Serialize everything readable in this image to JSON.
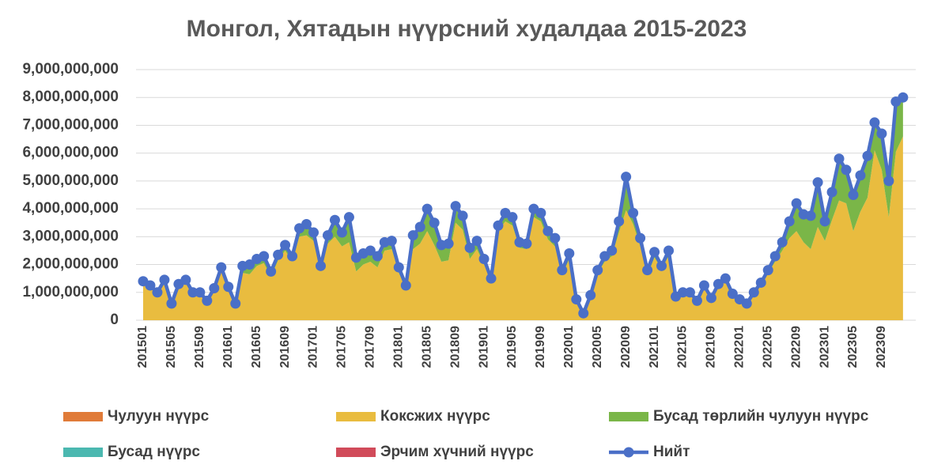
{
  "chart_data": {
    "type": "stacked-area-line",
    "title": "Монгол, Хятадын нүүрсний худалдаа 2015-2023",
    "categories": [
      "201501",
      null,
      null,
      null,
      "201505",
      null,
      null,
      null,
      "201509",
      null,
      null,
      null,
      "201601",
      null,
      null,
      null,
      "201605",
      null,
      null,
      null,
      "201609",
      null,
      null,
      null,
      "201701",
      null,
      null,
      null,
      "201705",
      null,
      null,
      null,
      "201709",
      null,
      null,
      null,
      "201801",
      null,
      null,
      null,
      "201805",
      null,
      null,
      null,
      "201809",
      null,
      null,
      null,
      "201901",
      null,
      null,
      null,
      "201905",
      null,
      null,
      null,
      "201909",
      null,
      null,
      null,
      "202001",
      null,
      null,
      null,
      "202005",
      null,
      null,
      null,
      "202009",
      null,
      null,
      null,
      "202101",
      null,
      null,
      null,
      "202105",
      null,
      null,
      null,
      "202109",
      null,
      null,
      null,
      "202201",
      null,
      null,
      null,
      "202205",
      null,
      null,
      null,
      "202209",
      null,
      null,
      null,
      "202301",
      null,
      null,
      null,
      "202305",
      null,
      null,
      null,
      "202309",
      null,
      null,
      null
    ],
    "ylim": [
      0,
      9000000000.0
    ],
    "yticks": [
      0,
      {
        "value": 1000000000.0,
        "label": "1,000,000,000"
      },
      {
        "value": 2000000000.0,
        "label": "2,000,000,000"
      },
      {
        "value": 3000000000.0,
        "label": "3,000,000,000"
      },
      {
        "value": 4000000000.0,
        "label": "4,000,000,000"
      },
      {
        "value": 5000000000.0,
        "label": "5,000,000,000"
      },
      {
        "value": 6000000000.0,
        "label": "6,000,000,000"
      },
      {
        "value": 7000000000.0,
        "label": "7,000,000,000"
      },
      {
        "value": 8000000000.0,
        "label": "8,000,000,000"
      },
      {
        "value": 9000000000.0,
        "label": "9,000,000,000"
      }
    ],
    "grid": true,
    "legend": "bottom",
    "series": [
      {
        "name": "Чулуун нүүрс",
        "color": "#E07B39",
        "kind": "area",
        "values": [
          0,
          0,
          0,
          0,
          0,
          0,
          0,
          0,
          0,
          0,
          0,
          0,
          0,
          0,
          0,
          0,
          0,
          0,
          0,
          0,
          0,
          0,
          0,
          0,
          0,
          0,
          0,
          0,
          0,
          0,
          0,
          0,
          0,
          0,
          0,
          0,
          0,
          0,
          0,
          0,
          0,
          0,
          0,
          0,
          0,
          0,
          0,
          0,
          0,
          0,
          0,
          0,
          0,
          0,
          0,
          0,
          0,
          0,
          0,
          0,
          0,
          0,
          0,
          0,
          0,
          0,
          0,
          0,
          0,
          0,
          0,
          0,
          0,
          0,
          0,
          0,
          0,
          0,
          0,
          0,
          0,
          0,
          0,
          0,
          0,
          0,
          0,
          0,
          0,
          0,
          0,
          0,
          0,
          0,
          0,
          0,
          0,
          0,
          0,
          0,
          0,
          0,
          0,
          0,
          0,
          0,
          0,
          0
        ]
      },
      {
        "name": "Коксжих нүүрс",
        "color": "#E9BC3F",
        "kind": "area",
        "values": [
          1350000000.0,
          1200000000.0,
          950000000.0,
          1400000000.0,
          550000000.0,
          1250000000.0,
          1400000000.0,
          950000000.0,
          950000000.0,
          650000000.0,
          1100000000.0,
          1850000000.0,
          1100000000.0,
          550000000.0,
          1700000000.0,
          1650000000.0,
          1950000000.0,
          2050000000.0,
          1550000000.0,
          2150000000.0,
          2500000000.0,
          2100000000.0,
          3000000000.0,
          3050000000.0,
          2850000000.0,
          1850000000.0,
          2750000000.0,
          3000000000.0,
          2650000000.0,
          2800000000.0,
          1750000000.0,
          2000000000.0,
          2100000000.0,
          1900000000.0,
          2500000000.0,
          2550000000.0,
          1700000000.0,
          1150000000.0,
          2550000000.0,
          2750000000.0,
          3200000000.0,
          2700000000.0,
          2100000000.0,
          2150000000.0,
          3500000000.0,
          3250000000.0,
          2200000000.0,
          2550000000.0,
          2000000000.0,
          1400000000.0,
          3200000000.0,
          3550000000.0,
          3400000000.0,
          2600000000.0,
          2550000000.0,
          3700000000.0,
          3550000000.0,
          2900000000.0,
          2650000000.0,
          1600000000.0,
          2200000000.0,
          700000000.0,
          200000000.0,
          800000000.0,
          1700000000.0,
          2100000000.0,
          2300000000.0,
          3150000000.0,
          3950000000.0,
          3450000000.0,
          2650000000.0,
          1600000000.0,
          2250000000.0,
          1850000000.0,
          2300000000.0,
          800000000.0,
          950000000.0,
          950000000.0,
          650000000.0,
          1200000000.0,
          750000000.0,
          1250000000.0,
          1450000000.0,
          900000000.0,
          700000000.0,
          550000000.0,
          950000000.0,
          1250000000.0,
          1700000000.0,
          2100000000.0,
          2500000000.0,
          2950000000.0,
          3200000000.0,
          2800000000.0,
          2550000000.0,
          3350000000.0,
          2850000000.0,
          3600000000.0,
          4300000000.0,
          4200000000.0,
          3200000000.0,
          3900000000.0,
          4400000000.0,
          6100000000.0,
          5400000000.0,
          3700000000.0,
          6050000000.0,
          6600000000.0
        ]
      },
      {
        "name": "Бусад төрлийн чулуун нүүрс",
        "color": "#7AB648",
        "kind": "area",
        "values": [
          50000000.0,
          50000000.0,
          50000000.0,
          50000000.0,
          50000000.0,
          50000000.0,
          50000000.0,
          50000000.0,
          50000000.0,
          50000000.0,
          50000000.0,
          50000000.0,
          100000000.0,
          50000000.0,
          200000000.0,
          300000000.0,
          200000000.0,
          200000000.0,
          200000000.0,
          200000000.0,
          200000000.0,
          200000000.0,
          300000000.0,
          400000000.0,
          300000000.0,
          100000000.0,
          300000000.0,
          600000000.0,
          500000000.0,
          900000000.0,
          500000000.0,
          400000000.0,
          400000000.0,
          400000000.0,
          300000000.0,
          300000000.0,
          200000000.0,
          100000000.0,
          500000000.0,
          600000000.0,
          800000000.0,
          800000000.0,
          600000000.0,
          600000000.0,
          600000000.0,
          500000000.0,
          400000000.0,
          300000000.0,
          200000000.0,
          100000000.0,
          200000000.0,
          300000000.0,
          300000000.0,
          200000000.0,
          200000000.0,
          300000000.0,
          300000000.0,
          300000000.0,
          300000000.0,
          200000000.0,
          200000000.0,
          50000000.0,
          50000000.0,
          100000000.0,
          100000000.0,
          200000000.0,
          200000000.0,
          400000000.0,
          1200000000.0,
          400000000.0,
          300000000.0,
          200000000.0,
          200000000.0,
          100000000.0,
          200000000.0,
          50000000.0,
          50000000.0,
          50000000.0,
          50000000.0,
          50000000.0,
          50000000.0,
          50000000.0,
          50000000.0,
          50000000.0,
          50000000.0,
          50000000.0,
          50000000.0,
          100000000.0,
          100000000.0,
          200000000.0,
          300000000.0,
          600000000.0,
          1000000000.0,
          1000000000.0,
          1200000000.0,
          1600000000.0,
          700000000.0,
          1000000000.0,
          1500000000.0,
          1200000000.0,
          1300000000.0,
          1300000000.0,
          1500000000.0,
          950000000.0,
          1300000000.0,
          1300000000.0,
          1800000000.0,
          1400000000.0
        ]
      },
      {
        "name": "Бусад нүүрс",
        "color": "#4BB8B0",
        "kind": "area",
        "values": [
          0,
          0,
          0,
          0,
          0,
          0,
          0,
          0,
          0,
          0,
          0,
          0,
          0,
          0,
          50000000.0,
          50000000.0,
          50000000.0,
          50000000.0,
          0,
          0,
          0,
          0,
          0,
          0,
          0,
          0,
          0,
          0,
          0,
          0,
          0,
          0,
          0,
          0,
          0,
          0,
          0,
          0,
          0,
          0,
          0,
          0,
          0,
          0,
          0,
          0,
          0,
          0,
          0,
          0,
          0,
          0,
          0,
          0,
          0,
          0,
          0,
          0,
          0,
          0,
          0,
          0,
          0,
          0,
          0,
          0,
          0,
          0,
          0,
          0,
          0,
          0,
          0,
          0,
          0,
          0,
          0,
          0,
          0,
          0,
          0,
          0,
          0,
          0,
          0,
          0,
          0,
          0,
          0,
          0,
          0,
          0,
          0,
          0,
          0,
          0,
          0,
          0,
          0,
          0,
          0,
          0,
          0,
          0,
          0,
          0,
          0,
          0
        ]
      },
      {
        "name": "Эрчим хүчний нүүрс",
        "color": "#D14B5A",
        "kind": "area",
        "values": [
          0,
          0,
          0,
          0,
          0,
          0,
          0,
          0,
          0,
          0,
          0,
          0,
          0,
          0,
          0,
          0,
          0,
          0,
          0,
          0,
          0,
          0,
          0,
          0,
          0,
          0,
          0,
          0,
          0,
          0,
          0,
          0,
          0,
          0,
          0,
          0,
          0,
          0,
          0,
          0,
          0,
          0,
          0,
          0,
          0,
          0,
          0,
          0,
          0,
          0,
          0,
          0,
          0,
          0,
          0,
          0,
          0,
          0,
          0,
          0,
          0,
          0,
          0,
          0,
          0,
          0,
          0,
          0,
          0,
          0,
          0,
          0,
          0,
          0,
          0,
          0,
          0,
          0,
          0,
          0,
          0,
          0,
          0,
          0,
          0,
          0,
          0,
          0,
          0,
          0,
          0,
          0,
          0,
          0,
          0,
          0,
          0,
          0,
          0,
          0,
          0,
          0,
          0,
          50000000.0,
          0,
          0,
          0,
          0
        ]
      },
      {
        "name": "Нийт",
        "color": "#4A6FC7",
        "kind": "line",
        "values": [
          1400000000.0,
          1250000000.0,
          1000000000.0,
          1450000000.0,
          600000000.0,
          1300000000.0,
          1450000000.0,
          1000000000.0,
          1000000000.0,
          700000000.0,
          1150000000.0,
          1900000000.0,
          1200000000.0,
          600000000.0,
          1950000000.0,
          2000000000.0,
          2200000000.0,
          2300000000.0,
          1750000000.0,
          2350000000.0,
          2700000000.0,
          2300000000.0,
          3300000000.0,
          3450000000.0,
          3150000000.0,
          1950000000.0,
          3050000000.0,
          3600000000.0,
          3150000000.0,
          3700000000.0,
          2250000000.0,
          2400000000.0,
          2500000000.0,
          2300000000.0,
          2800000000.0,
          2850000000.0,
          1900000000.0,
          1250000000.0,
          3050000000.0,
          3350000000.0,
          4000000000.0,
          3500000000.0,
          2700000000.0,
          2750000000.0,
          4100000000.0,
          3750000000.0,
          2600000000.0,
          2850000000.0,
          2200000000.0,
          1500000000.0,
          3400000000.0,
          3850000000.0,
          3700000000.0,
          2800000000.0,
          2750000000.0,
          4000000000.0,
          3850000000.0,
          3200000000.0,
          2950000000.0,
          1800000000.0,
          2400000000.0,
          750000000.0,
          250000000.0,
          900000000.0,
          1800000000.0,
          2300000000.0,
          2500000000.0,
          3550000000.0,
          5150000000.0,
          3850000000.0,
          2950000000.0,
          1800000000.0,
          2450000000.0,
          1950000000.0,
          2500000000.0,
          850000000.0,
          1000000000.0,
          1000000000.0,
          700000000.0,
          1250000000.0,
          800000000.0,
          1300000000.0,
          1500000000.0,
          950000000.0,
          750000000.0,
          600000000.0,
          1000000000.0,
          1350000000.0,
          1800000000.0,
          2300000000.0,
          2800000000.0,
          3550000000.0,
          4200000000.0,
          3800000000.0,
          3750000000.0,
          4950000000.0,
          3550000000.0,
          4600000000.0,
          5800000000.0,
          5400000000.0,
          4500000000.0,
          5200000000.0,
          5900000000.0,
          7100000000.0,
          6700000000.0,
          5000000000.0,
          7850000000.0,
          8000000000.0
        ]
      }
    ]
  }
}
